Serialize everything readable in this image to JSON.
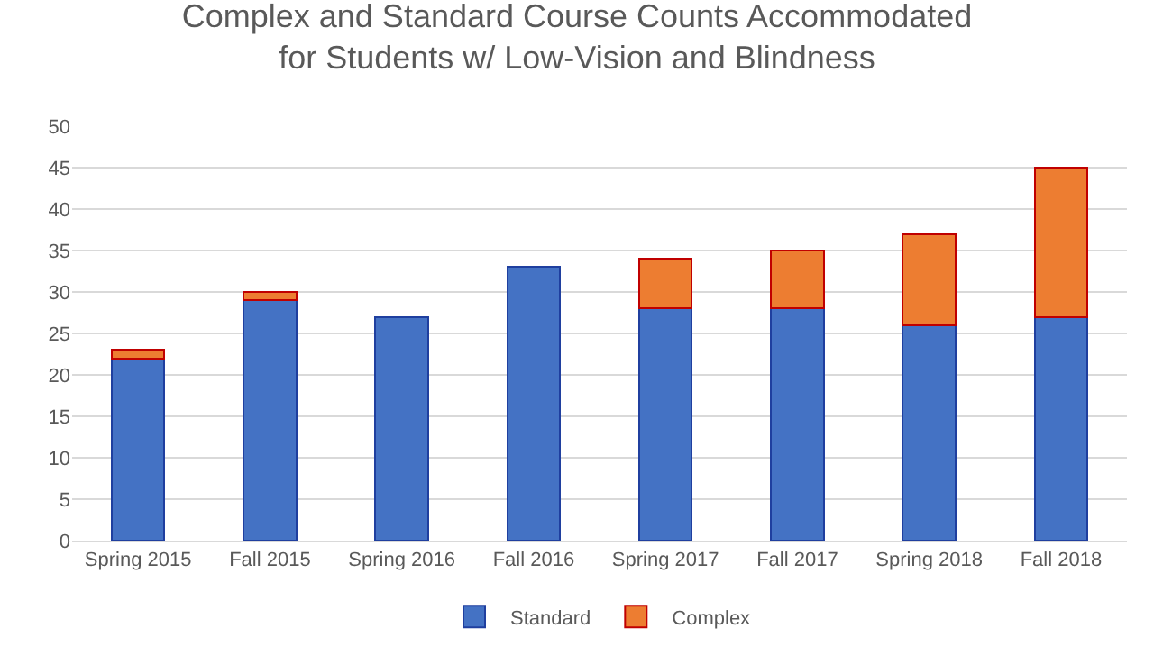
{
  "chart_data": {
    "type": "bar",
    "title": "Complex and Standard Course Counts Accommodated for Students w/ Low-Vision and Blindness",
    "categories": [
      "Spring 2015",
      "Fall 2015",
      "Spring 2016",
      "Fall 2016",
      "Spring 2017",
      "Fall 2017",
      "Spring 2018",
      "Fall 2018"
    ],
    "series": [
      {
        "name": "Standard",
        "color": "#4472c4",
        "values": [
          22,
          29,
          27,
          33,
          28,
          28,
          26,
          27
        ]
      },
      {
        "name": "Complex",
        "color": "#ed7d31",
        "values": [
          1,
          1,
          null,
          null,
          6,
          7,
          11,
          18
        ]
      }
    ],
    "stacked": true,
    "ylim": [
      0,
      50
    ],
    "yticks": [
      0,
      5,
      10,
      15,
      20,
      25,
      30,
      35,
      40,
      45,
      50
    ],
    "grid": "y",
    "legend": "bottom"
  }
}
